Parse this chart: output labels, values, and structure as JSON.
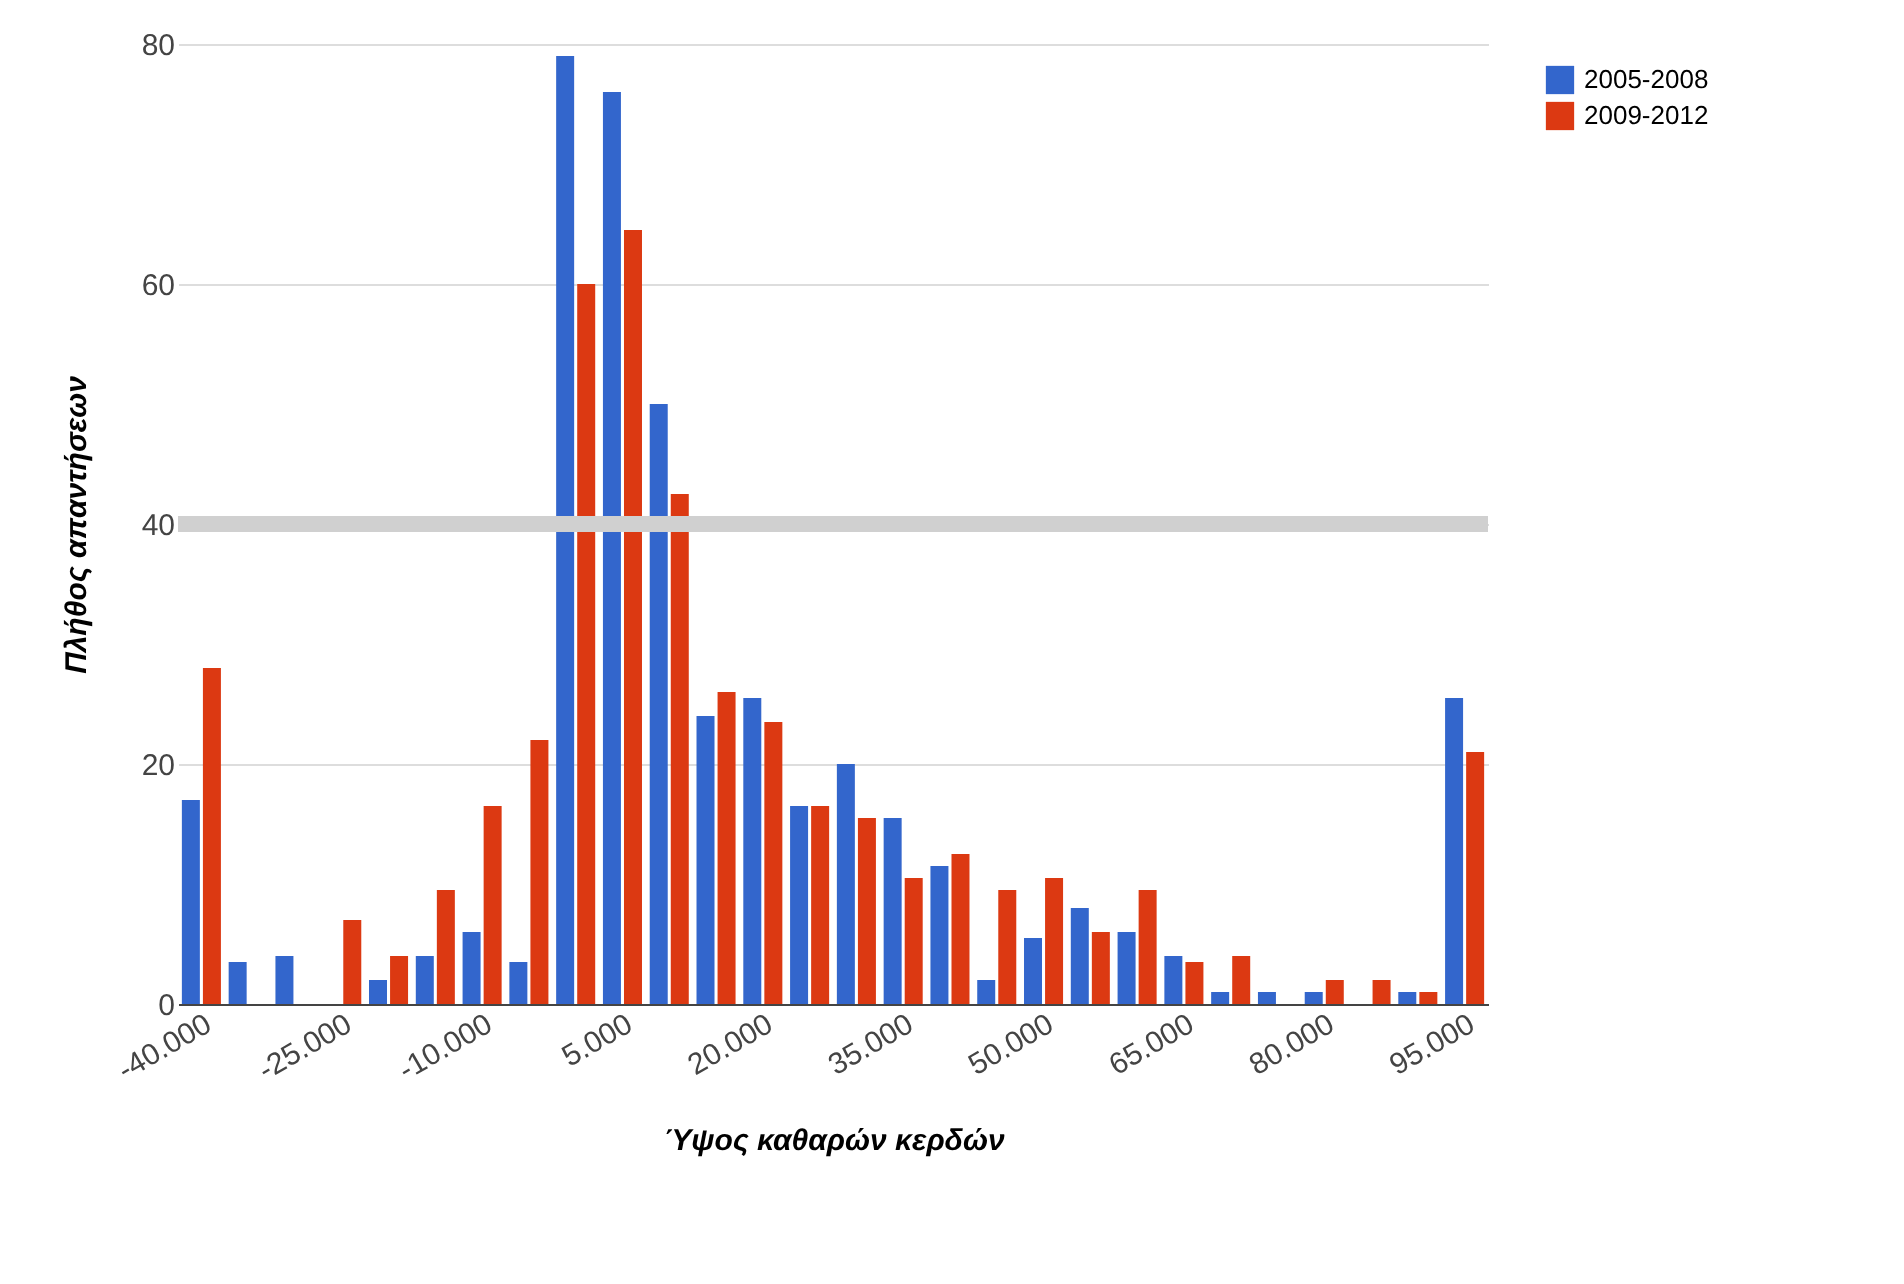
{
  "chart_data": {
    "type": "bar",
    "xlabel": "Ύψος καθαρών κερδών",
    "ylabel": "Πλήθος απαντήσεων",
    "categories": [
      "-40.000",
      null,
      null,
      "-25.000",
      null,
      null,
      "-10.000",
      null,
      null,
      "5.000",
      null,
      null,
      "20.000",
      null,
      null,
      "35.000",
      null,
      null,
      "50.000",
      null,
      null,
      "65.000",
      null,
      null,
      "80.000",
      null,
      null,
      "95.000"
    ],
    "series": [
      {
        "name": "2005-2008",
        "color": "#3366cc",
        "values": [
          17,
          3.5,
          4,
          0,
          2,
          4,
          6,
          3.5,
          79,
          76,
          50,
          24,
          25.5,
          16.5,
          20,
          15.5,
          11.5,
          2,
          5.5,
          8,
          6,
          4,
          1,
          1,
          1,
          0,
          1,
          25.5
        ]
      },
      {
        "name": "2009-2012",
        "color": "#dc3912",
        "values": [
          28,
          0,
          0,
          7,
          4,
          9.5,
          16.5,
          22,
          60,
          64.5,
          42.5,
          26,
          23.5,
          16.5,
          15.5,
          10.5,
          12.5,
          9.5,
          10.5,
          6,
          9.5,
          3.5,
          4,
          0,
          2,
          2,
          1,
          21
        ]
      }
    ],
    "ylim": [
      0,
      80
    ],
    "yticks": [
      0,
      20,
      40,
      60,
      80
    ],
    "grid": "y",
    "legend": "top right",
    "ref_lines": [
      {
        "axis": "y",
        "value": 40,
        "color": "#d0d0d0"
      }
    ]
  }
}
